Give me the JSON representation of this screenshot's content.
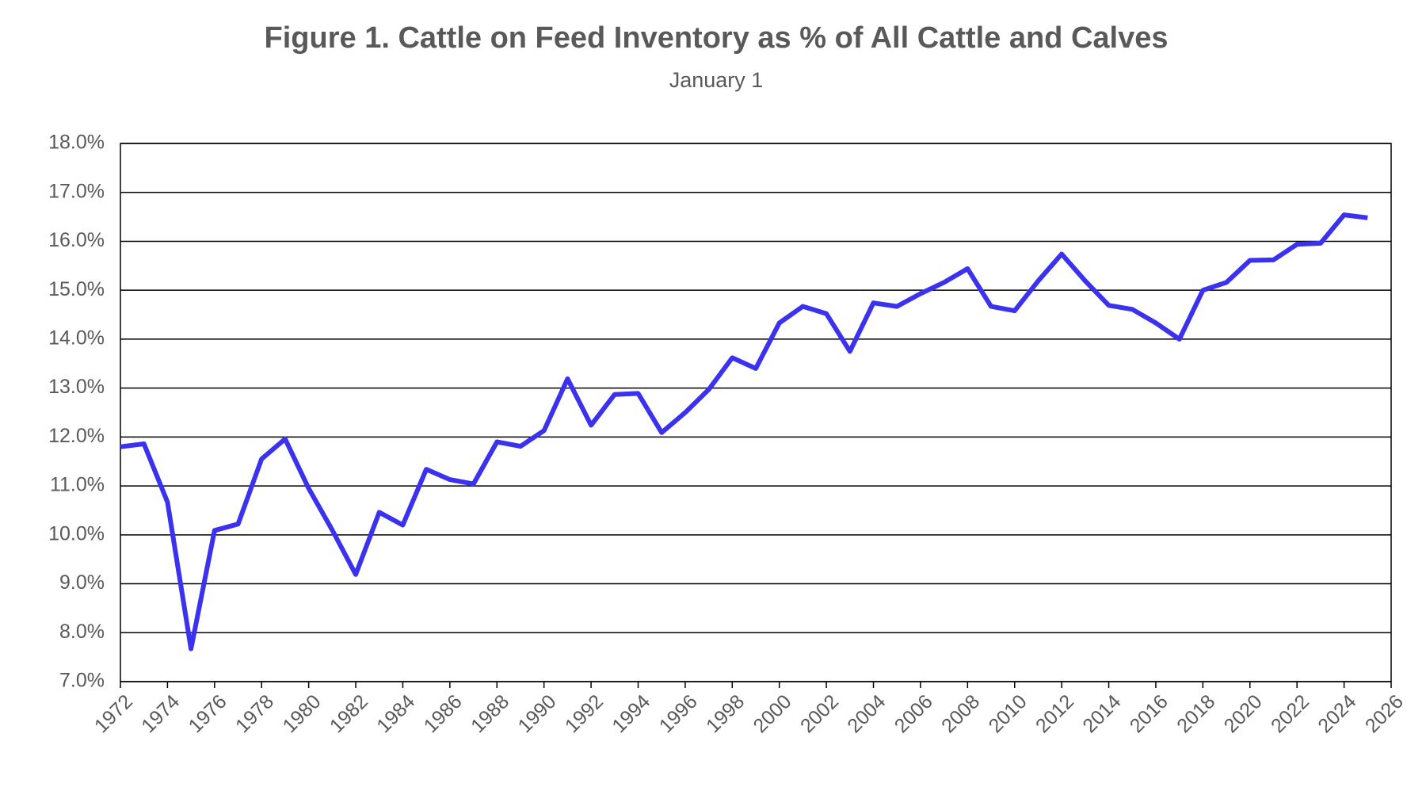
{
  "chart_data": {
    "type": "line",
    "title": "Figure 1. Cattle on Feed Inventory as % of All Cattle and Calves",
    "subtitle": "January 1",
    "x": [
      1972,
      1973,
      1974,
      1975,
      1976,
      1977,
      1978,
      1979,
      1980,
      1981,
      1982,
      1983,
      1984,
      1985,
      1986,
      1987,
      1988,
      1989,
      1990,
      1991,
      1992,
      1993,
      1994,
      1995,
      1996,
      1997,
      1998,
      1999,
      2000,
      2001,
      2002,
      2003,
      2004,
      2005,
      2006,
      2007,
      2008,
      2009,
      2010,
      2011,
      2012,
      2013,
      2014,
      2015,
      2016,
      2017,
      2018,
      2019,
      2020,
      2021,
      2022,
      2023,
      2024,
      2025
    ],
    "series": [
      {
        "color": "#3b32f0",
        "values": [
          11.8,
          11.86,
          10.67,
          7.67,
          10.09,
          10.22,
          11.55,
          11.96,
          10.95,
          10.1,
          9.19,
          10.46,
          10.2,
          11.34,
          11.13,
          11.04,
          11.9,
          11.81,
          12.13,
          13.19,
          12.24,
          12.87,
          12.89,
          12.09,
          12.5,
          12.97,
          13.62,
          13.4,
          14.33,
          14.67,
          14.52,
          13.75,
          14.74,
          14.67,
          14.93,
          15.16,
          15.44,
          14.67,
          14.58,
          15.19,
          15.74,
          15.19,
          14.69,
          14.61,
          14.33,
          14.0,
          15.0,
          15.16,
          15.61,
          15.62,
          15.94,
          15.96,
          16.54,
          16.48
        ]
      }
    ],
    "xlim": [
      1972,
      2026
    ],
    "xticks": [
      1972,
      1974,
      1976,
      1978,
      1980,
      1982,
      1984,
      1986,
      1988,
      1990,
      1992,
      1994,
      1996,
      1998,
      2000,
      2002,
      2004,
      2006,
      2008,
      2010,
      2012,
      2014,
      2016,
      2018,
      2020,
      2022,
      2024,
      2026
    ],
    "ylim": [
      7,
      18
    ],
    "yticks": [
      {
        "value": 7,
        "label": "7.0%"
      },
      {
        "value": 8,
        "label": "8.0%"
      },
      {
        "value": 9,
        "label": "9.0%"
      },
      {
        "value": 10,
        "label": "10.0%"
      },
      {
        "value": 11,
        "label": "11.0%"
      },
      {
        "value": 12,
        "label": "12.0%"
      },
      {
        "value": 13,
        "label": "13.0%"
      },
      {
        "value": 14,
        "label": "14.0%"
      },
      {
        "value": 15,
        "label": "15.0%"
      },
      {
        "value": 16,
        "label": "16.0%"
      },
      {
        "value": 17,
        "label": "17.0%"
      },
      {
        "value": 18,
        "label": "18.0%"
      }
    ],
    "grid": true
  }
}
